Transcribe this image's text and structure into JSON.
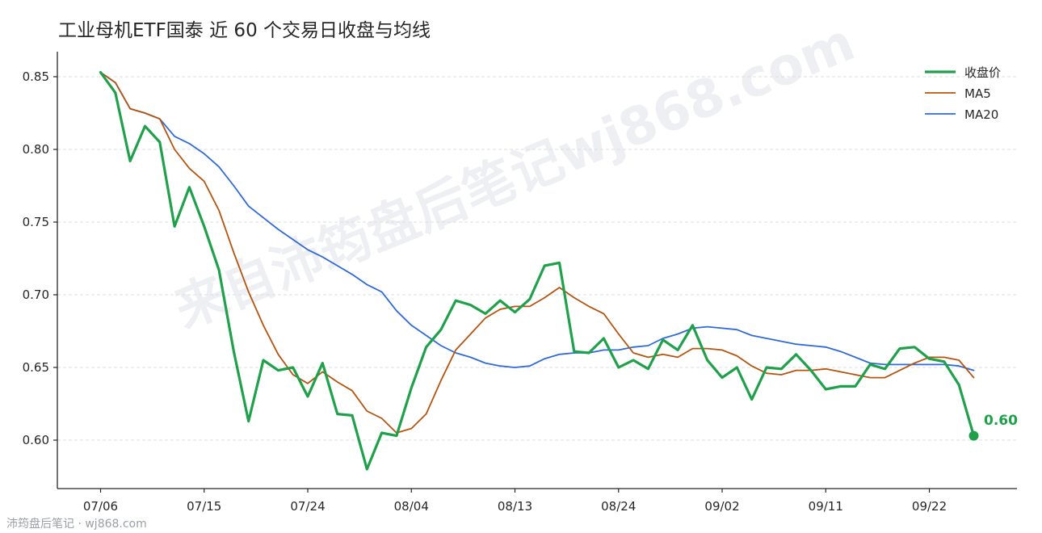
{
  "title": "工业母机ETF国泰 近 60 个交易日收盘与均线",
  "watermark": "来自沛筠盘后笔记wj868.com",
  "footer": "沛筠盘后笔记 · wj868.com",
  "last_label": "0.60",
  "colors": {
    "close": "#1fa04a",
    "ma5": "#b5540f",
    "ma20": "#2f6ad8"
  },
  "chart_data": {
    "type": "line",
    "title": "工业母机ETF国泰 近 60 个交易日收盘与均线",
    "xlabel": "",
    "ylabel": "",
    "ylim": [
      0.568,
      0.865
    ],
    "yticks": [
      "0.60",
      "0.65",
      "0.70",
      "0.75",
      "0.80",
      "0.85"
    ],
    "xticks": [
      "07/06",
      "07/15",
      "07/24",
      "08/04",
      "08/13",
      "08/24",
      "09/02",
      "09/11",
      "09/22"
    ],
    "xtick_index": [
      0,
      7,
      14,
      21,
      28,
      35,
      42,
      49,
      56
    ],
    "grid": "horizontal",
    "legend": "top-right",
    "series": [
      {
        "name": "收盘价",
        "values": [
          0.853,
          0.839,
          0.792,
          0.816,
          0.805,
          0.747,
          0.774,
          0.747,
          0.717,
          0.661,
          0.613,
          0.655,
          0.648,
          0.65,
          0.63,
          0.653,
          0.618,
          0.617,
          0.58,
          0.605,
          0.603,
          0.636,
          0.664,
          0.676,
          0.696,
          0.693,
          0.687,
          0.696,
          0.688,
          0.697,
          0.72,
          0.722,
          0.661,
          0.66,
          0.67,
          0.65,
          0.655,
          0.649,
          0.669,
          0.662,
          0.679,
          0.655,
          0.643,
          0.65,
          0.628,
          0.65,
          0.649,
          0.659,
          0.648,
          0.635,
          0.637,
          0.637,
          0.652,
          0.649,
          0.663,
          0.664,
          0.656,
          0.654,
          0.638,
          0.603
        ]
      },
      {
        "name": "MA5",
        "values": [
          0.853,
          0.846,
          0.828,
          0.825,
          0.821,
          0.8,
          0.787,
          0.778,
          0.758,
          0.729,
          0.702,
          0.679,
          0.659,
          0.645,
          0.639,
          0.647,
          0.64,
          0.634,
          0.62,
          0.615,
          0.605,
          0.608,
          0.618,
          0.641,
          0.662,
          0.673,
          0.684,
          0.69,
          0.692,
          0.692,
          0.698,
          0.705,
          0.698,
          0.692,
          0.687,
          0.673,
          0.66,
          0.657,
          0.659,
          0.657,
          0.663,
          0.663,
          0.662,
          0.658,
          0.651,
          0.646,
          0.645,
          0.648,
          0.648,
          0.649,
          0.647,
          0.645,
          0.643,
          0.643,
          0.648,
          0.653,
          0.657,
          0.657,
          0.655,
          0.643
        ]
      },
      {
        "name": "MA20",
        "values": [
          0.853,
          0.846,
          0.828,
          0.825,
          0.821,
          0.809,
          0.804,
          0.797,
          0.788,
          0.775,
          0.761,
          0.753,
          0.745,
          0.738,
          0.731,
          0.726,
          0.72,
          0.714,
          0.707,
          0.702,
          0.689,
          0.679,
          0.672,
          0.665,
          0.66,
          0.657,
          0.653,
          0.651,
          0.65,
          0.651,
          0.656,
          0.659,
          0.66,
          0.66,
          0.662,
          0.662,
          0.664,
          0.665,
          0.67,
          0.673,
          0.677,
          0.678,
          0.677,
          0.676,
          0.672,
          0.67,
          0.668,
          0.666,
          0.665,
          0.664,
          0.661,
          0.657,
          0.653,
          0.652,
          0.652,
          0.652,
          0.652,
          0.652,
          0.651,
          0.648
        ]
      }
    ]
  }
}
